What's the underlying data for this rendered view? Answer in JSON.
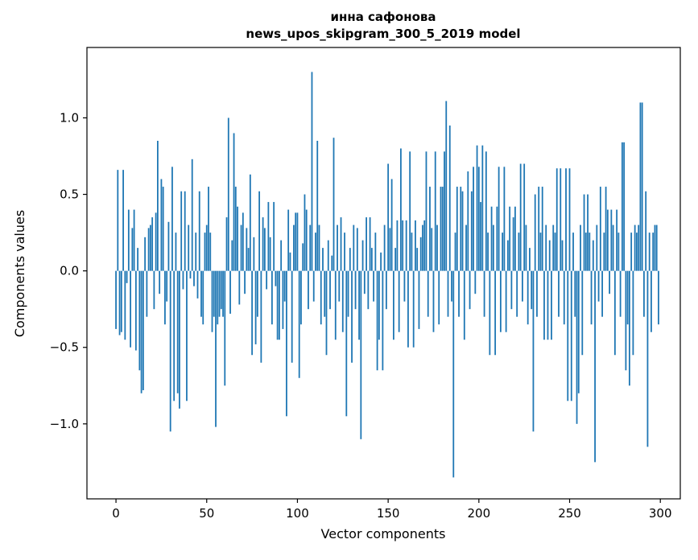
{
  "figure": {
    "title_line1": "инна сафонова",
    "title_line2": "news_upos_skipgram_300_5_2019 model"
  },
  "chart_data": {
    "type": "bar",
    "title": "инна сафонова\nnews_upos_skipgram_300_5_2019 model",
    "xlabel": "Vector components",
    "ylabel": "Components values",
    "xlim": [
      -16,
      311
    ],
    "ylim": [
      -1.49,
      1.46
    ],
    "x_ticks": [
      0,
      50,
      100,
      150,
      200,
      250,
      300
    ],
    "y_ticks": [
      -1.0,
      -0.5,
      0.0,
      0.5,
      1.0
    ],
    "bar_color": "#1f77b4",
    "grid": false,
    "legend": "none",
    "n_components": 300,
    "values": [
      -0.38,
      0.66,
      -0.42,
      -0.4,
      0.66,
      -0.45,
      -0.08,
      0.4,
      -0.5,
      0.28,
      0.4,
      -0.52,
      0.15,
      -0.65,
      -0.8,
      -0.78,
      0.22,
      -0.3,
      0.28,
      0.3,
      0.35,
      -0.25,
      0.38,
      0.85,
      -0.15,
      0.6,
      0.55,
      -0.35,
      -0.2,
      0.32,
      -1.05,
      0.68,
      -0.85,
      0.25,
      -0.8,
      -0.9,
      0.52,
      -0.12,
      0.52,
      -0.85,
      0.3,
      -0.05,
      0.73,
      -0.1,
      0.25,
      -0.18,
      0.52,
      -0.3,
      -0.35,
      0.25,
      0.3,
      0.55,
      0.25,
      -0.4,
      -0.3,
      -1.02,
      -0.35,
      -0.3,
      -0.25,
      -0.3,
      -0.75,
      0.35,
      1.0,
      -0.28,
      0.2,
      0.9,
      0.55,
      0.42,
      -0.22,
      0.3,
      0.38,
      -0.15,
      0.28,
      0.15,
      0.63,
      -0.55,
      0.22,
      -0.48,
      -0.3,
      0.52,
      -0.6,
      0.35,
      0.28,
      -0.12,
      0.45,
      0.22,
      -0.35,
      0.45,
      -0.1,
      -0.45,
      -0.45,
      0.2,
      -0.38,
      -0.2,
      -0.95,
      0.4,
      0.12,
      -0.6,
      0.3,
      0.38,
      0.38,
      -0.7,
      -0.35,
      0.18,
      0.5,
      0.4,
      -0.25,
      0.3,
      1.3,
      -0.2,
      0.25,
      0.85,
      0.3,
      -0.35,
      0.15,
      -0.3,
      -0.55,
      0.2,
      -0.25,
      0.1,
      0.87,
      -0.45,
      0.3,
      -0.2,
      0.35,
      -0.4,
      0.25,
      -0.95,
      -0.3,
      0.15,
      -0.6,
      0.3,
      -0.25,
      0.28,
      -0.45,
      -1.1,
      0.2,
      -0.15,
      0.35,
      -0.25,
      0.35,
      0.15,
      -0.2,
      0.25,
      -0.65,
      -0.45,
      0.12,
      -0.65,
      0.3,
      -0.25,
      0.7,
      0.28,
      0.6,
      -0.45,
      0.15,
      0.33,
      -0.4,
      0.8,
      0.33,
      -0.2,
      0.33,
      -0.5,
      0.78,
      0.25,
      -0.5,
      0.33,
      0.15,
      -0.38,
      0.22,
      0.3,
      0.33,
      0.78,
      -0.3,
      0.55,
      0.28,
      -0.4,
      0.78,
      0.3,
      -0.35,
      0.55,
      0.55,
      0.78,
      1.11,
      -0.3,
      0.95,
      -0.2,
      -1.35,
      0.25,
      0.55,
      -0.3,
      0.55,
      0.52,
      -0.45,
      0.3,
      0.65,
      -0.25,
      0.52,
      0.68,
      -0.15,
      0.82,
      0.68,
      0.45,
      0.82,
      -0.3,
      0.78,
      0.25,
      -0.55,
      0.42,
      0.3,
      -0.55,
      0.42,
      0.68,
      -0.4,
      0.25,
      0.68,
      -0.4,
      0.2,
      0.42,
      -0.25,
      0.35,
      0.42,
      -0.3,
      0.25,
      0.7,
      -0.2,
      0.7,
      0.3,
      -0.35,
      0.15,
      -0.25,
      -1.05,
      0.5,
      -0.3,
      0.55,
      0.25,
      0.55,
      -0.45,
      0.3,
      -0.45,
      0.2,
      -0.45,
      0.3,
      0.25,
      0.67,
      -0.3,
      0.67,
      0.2,
      -0.35,
      0.67,
      -0.85,
      0.67,
      -0.85,
      0.25,
      -0.3,
      -1.0,
      -0.8,
      0.3,
      -0.55,
      0.5,
      0.25,
      0.5,
      0.25,
      -0.35,
      0.2,
      -1.25,
      0.3,
      -0.2,
      0.55,
      -0.3,
      0.25,
      0.55,
      0.4,
      -0.15,
      0.4,
      0.3,
      -0.55,
      0.4,
      0.25,
      -0.3,
      0.84,
      0.84,
      -0.65,
      -0.35,
      -0.75,
      0.25,
      -0.55,
      0.3,
      0.25,
      0.3,
      1.1,
      1.1,
      -0.3,
      0.52,
      -1.15,
      0.25,
      -0.4,
      0.25,
      0.3,
      0.3,
      -0.35
    ]
  }
}
